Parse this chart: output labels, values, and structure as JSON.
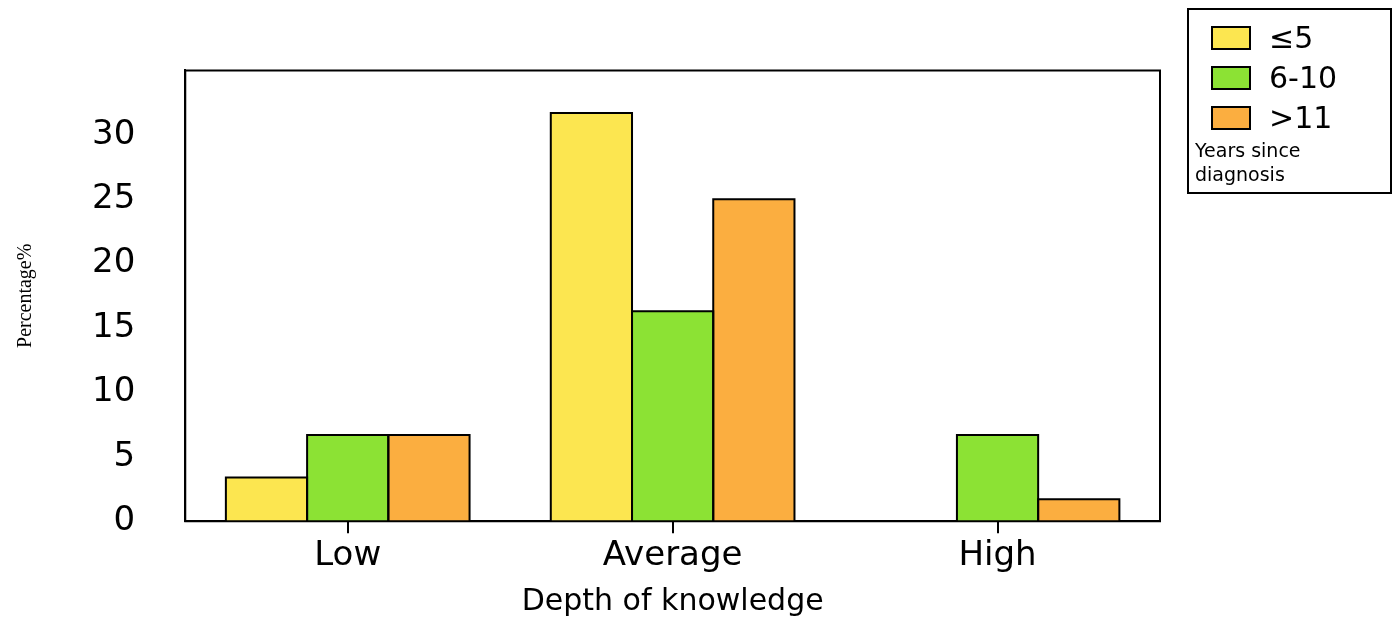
{
  "chart_data": {
    "type": "bar",
    "xlabel": "Depth of knowledge",
    "ylabel": "Percentage%",
    "legend_title": "Years since diagnosis",
    "categories": [
      "Low",
      "Average",
      "High"
    ],
    "series": [
      {
        "name": "≤5",
        "color": "#fce650",
        "values": [
          3.4,
          31.7,
          null
        ]
      },
      {
        "name": "6-10",
        "color": "#8ce234",
        "values": [
          6.7,
          16.3,
          6.7
        ]
      },
      {
        "name": ">11",
        "color": "#fbae40",
        "values": [
          6.7,
          25.0,
          1.7
        ]
      }
    ],
    "ylim": [
      0,
      35
    ],
    "yticks": [
      0,
      5,
      10,
      15,
      20,
      25,
      30
    ],
    "grid": false,
    "legend": "top right"
  }
}
